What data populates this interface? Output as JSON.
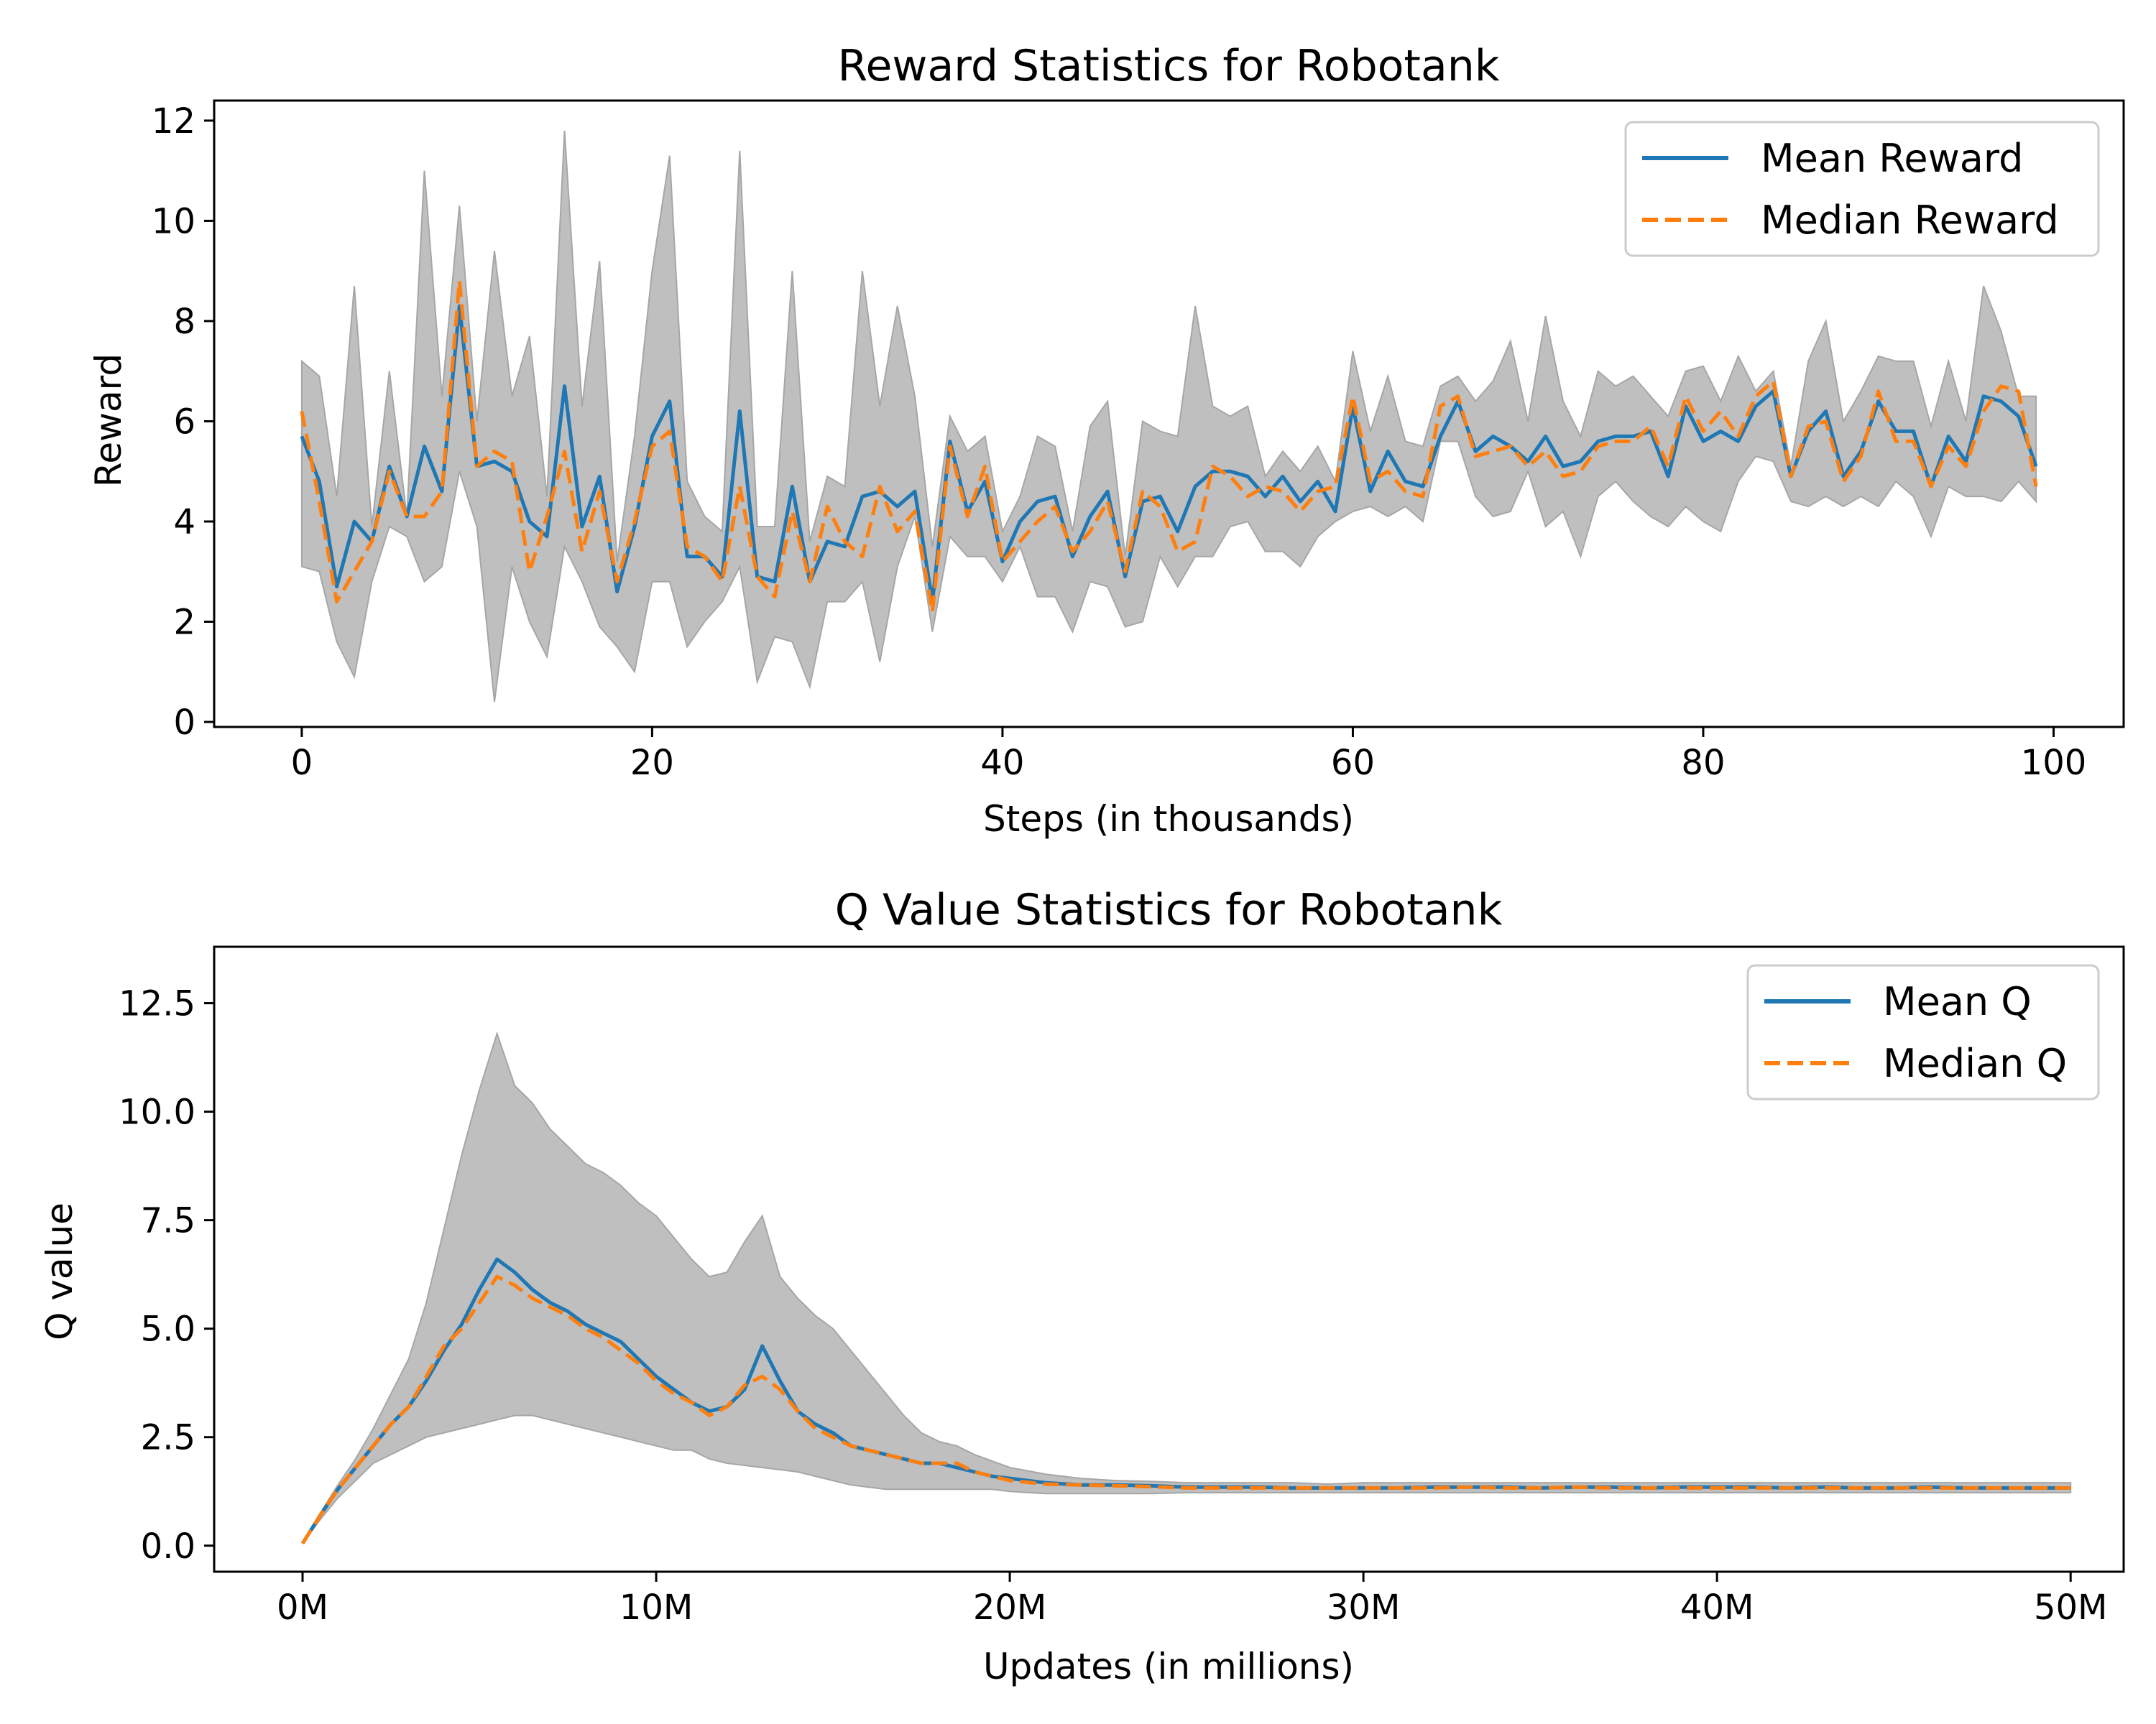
{
  "chart_data": [
    {
      "type": "line",
      "title": "Reward Statistics for Robotank",
      "xlabel": "Steps (in thousands)",
      "ylabel": "Reward",
      "xlim": [
        -5,
        104
      ],
      "ylim": [
        -0.1,
        12.4
      ],
      "xticks": [
        0,
        20,
        40,
        60,
        80,
        100
      ],
      "xtick_labels": [
        "0",
        "20",
        "40",
        "60",
        "80",
        "100"
      ],
      "yticks": [
        0,
        2,
        4,
        6,
        8,
        10,
        12
      ],
      "ytick_labels": [
        "0",
        "2",
        "4",
        "6",
        "8",
        "10",
        "12"
      ],
      "grid": false,
      "legend_position": "top-right",
      "x": [
        0,
        1,
        2,
        3,
        4,
        5,
        6,
        7,
        8,
        9,
        10,
        11,
        12,
        13,
        14,
        15,
        16,
        17,
        18,
        19,
        20,
        21,
        22,
        23,
        24,
        25,
        26,
        27,
        28,
        29,
        30,
        31,
        32,
        33,
        34,
        35,
        36,
        37,
        38,
        39,
        40,
        41,
        42,
        43,
        44,
        45,
        46,
        47,
        48,
        49,
        50,
        51,
        52,
        53,
        54,
        55,
        56,
        57,
        58,
        59,
        60,
        61,
        62,
        63,
        64,
        65,
        66,
        67,
        68,
        69,
        70,
        71,
        72,
        73,
        74,
        75,
        76,
        77,
        78,
        79,
        80,
        81,
        82,
        83,
        84,
        85,
        86,
        87,
        88,
        89,
        90,
        91,
        92,
        93,
        94,
        95,
        96,
        97,
        98,
        99
      ],
      "series": [
        {
          "name": "Mean Reward",
          "color": "#1f77b4",
          "style": "solid",
          "values": [
            5.7,
            4.8,
            2.7,
            4.0,
            3.6,
            5.1,
            4.1,
            5.5,
            4.6,
            8.3,
            5.1,
            5.2,
            5.0,
            4.0,
            3.7,
            6.7,
            3.9,
            4.9,
            2.6,
            3.9,
            5.7,
            6.4,
            3.3,
            3.3,
            2.9,
            6.2,
            2.9,
            2.8,
            4.7,
            2.8,
            3.6,
            3.5,
            4.5,
            4.6,
            4.3,
            4.6,
            2.4,
            5.6,
            4.2,
            4.8,
            3.2,
            4.0,
            4.4,
            4.5,
            3.3,
            4.1,
            4.6,
            2.9,
            4.4,
            4.5,
            3.8,
            4.7,
            5.0,
            5.0,
            4.9,
            4.5,
            4.9,
            4.4,
            4.8,
            4.2,
            6.3,
            4.6,
            5.4,
            4.8,
            4.7,
            5.7,
            6.4,
            5.4,
            5.7,
            5.5,
            5.2,
            5.7,
            5.1,
            5.2,
            5.6,
            5.7,
            5.7,
            5.8,
            4.9,
            6.3,
            5.6,
            5.8,
            5.6,
            6.3,
            6.6,
            4.9,
            5.8,
            6.2,
            4.9,
            5.4,
            6.4,
            5.8,
            5.8,
            4.7,
            5.7,
            5.2,
            6.5,
            6.4,
            6.1,
            5.1
          ]
        },
        {
          "name": "Median Reward",
          "color": "#ff7f0e",
          "style": "dashed",
          "values": [
            6.2,
            4.4,
            2.4,
            3.0,
            3.6,
            5.0,
            4.1,
            4.1,
            4.6,
            8.8,
            5.1,
            5.4,
            5.2,
            3.0,
            4.1,
            5.4,
            3.4,
            4.6,
            2.8,
            4.0,
            5.5,
            5.8,
            3.5,
            3.3,
            2.8,
            4.7,
            2.9,
            2.5,
            4.2,
            2.8,
            4.3,
            3.6,
            3.3,
            4.7,
            3.8,
            4.2,
            2.2,
            5.5,
            4.1,
            5.1,
            3.2,
            3.6,
            4.0,
            4.3,
            3.4,
            3.8,
            4.4,
            3.0,
            4.6,
            4.3,
            3.4,
            3.6,
            5.1,
            4.9,
            4.5,
            4.7,
            4.6,
            4.2,
            4.6,
            4.7,
            6.5,
            4.8,
            5.0,
            4.6,
            4.5,
            6.3,
            6.5,
            5.3,
            5.4,
            5.5,
            5.1,
            5.4,
            4.9,
            5.0,
            5.5,
            5.6,
            5.6,
            5.9,
            5.1,
            6.5,
            5.8,
            6.2,
            5.7,
            6.5,
            6.8,
            4.9,
            5.9,
            6.0,
            4.8,
            5.3,
            6.6,
            5.6,
            5.6,
            4.7,
            5.5,
            5.1,
            6.2,
            6.7,
            6.6,
            4.7
          ]
        },
        {
          "name": "",
          "type": "band",
          "color": "#bfbfbf",
          "upper": [
            7.2,
            6.9,
            4.5,
            8.7,
            3.9,
            7.0,
            4.1,
            11.0,
            6.5,
            10.3,
            6.0,
            9.4,
            6.5,
            7.7,
            4.5,
            11.8,
            6.3,
            9.2,
            3.2,
            5.7,
            9.0,
            11.3,
            4.8,
            4.1,
            3.8,
            11.4,
            3.9,
            3.9,
            9.0,
            3.6,
            4.9,
            4.7,
            9.0,
            6.3,
            8.3,
            6.5,
            3.5,
            6.1,
            5.4,
            5.7,
            3.8,
            4.5,
            5.7,
            5.5,
            3.8,
            5.9,
            6.4,
            3.3,
            6.0,
            5.8,
            5.7,
            8.3,
            6.3,
            6.1,
            6.3,
            4.9,
            5.4,
            5.0,
            5.5,
            4.8,
            7.4,
            5.8,
            6.9,
            5.6,
            5.5,
            6.7,
            6.9,
            6.4,
            6.8,
            7.6,
            6.0,
            8.1,
            6.4,
            5.7,
            7.0,
            6.7,
            6.9,
            6.5,
            6.1,
            7.0,
            7.1,
            6.4,
            7.3,
            6.6,
            7.0,
            5.1,
            7.2,
            8.0,
            6.0,
            6.6,
            7.3,
            7.2,
            7.2,
            5.9,
            7.2,
            6.0,
            8.7,
            7.8,
            6.5,
            6.5
          ],
          "lower": [
            3.1,
            3.0,
            1.6,
            0.9,
            2.8,
            3.9,
            3.7,
            2.8,
            3.1,
            5.0,
            3.9,
            0.4,
            3.1,
            2.0,
            1.3,
            3.5,
            2.8,
            1.9,
            1.5,
            1.0,
            2.8,
            2.8,
            1.5,
            2.0,
            2.4,
            3.1,
            0.8,
            1.7,
            1.6,
            0.7,
            2.4,
            2.4,
            2.8,
            1.2,
            3.1,
            4.1,
            1.8,
            3.7,
            3.3,
            3.3,
            2.8,
            3.5,
            2.5,
            2.5,
            1.8,
            2.8,
            2.7,
            1.9,
            2.0,
            3.3,
            2.7,
            3.3,
            3.3,
            3.9,
            4.0,
            3.4,
            3.4,
            3.1,
            3.7,
            4.0,
            4.2,
            4.3,
            4.1,
            4.3,
            4.0,
            5.6,
            5.6,
            4.5,
            4.1,
            4.2,
            5.0,
            3.9,
            4.2,
            3.3,
            4.5,
            4.8,
            4.4,
            4.1,
            3.9,
            4.3,
            4.0,
            3.8,
            4.8,
            5.3,
            5.2,
            4.4,
            4.3,
            4.5,
            4.3,
            4.5,
            4.3,
            4.8,
            4.5,
            3.7,
            4.7,
            4.5,
            4.5,
            4.4,
            4.8,
            4.4
          ]
        }
      ]
    },
    {
      "type": "line",
      "title": "Q Value Statistics for Robotank",
      "xlabel": "Updates (in millions)",
      "ylabel": "Q value",
      "xlim": [
        -2.5,
        51.5
      ],
      "ylim": [
        -0.6,
        13.8
      ],
      "xticks": [
        0,
        10,
        20,
        30,
        40,
        50
      ],
      "xtick_labels": [
        "0M",
        "10M",
        "20M",
        "30M",
        "40M",
        "50M"
      ],
      "yticks": [
        0.0,
        2.5,
        5.0,
        7.5,
        10.0,
        12.5
      ],
      "ytick_labels": [
        "0.0",
        "2.5",
        "5.0",
        "7.5",
        "10.0",
        "12.5"
      ],
      "grid": false,
      "legend_position": "top-right",
      "x": [
        0,
        0.5,
        1,
        1.5,
        2,
        2.5,
        3,
        3.5,
        4,
        4.5,
        5,
        5.5,
        6,
        6.5,
        7,
        7.5,
        8,
        8.5,
        9,
        9.5,
        10,
        10.5,
        11,
        11.5,
        12,
        12.5,
        13,
        13.5,
        14,
        14.5,
        15,
        15.5,
        16,
        16.5,
        17,
        17.5,
        18,
        18.5,
        19,
        19.5,
        20,
        21,
        22,
        23,
        24,
        25,
        26,
        27,
        28,
        29,
        30,
        31,
        32,
        33,
        34,
        35,
        36,
        37,
        38,
        39,
        40,
        41,
        42,
        43,
        44,
        45,
        46,
        47,
        48,
        49,
        50
      ],
      "series": [
        {
          "name": "Mean Q",
          "color": "#1f77b4",
          "style": "solid",
          "values": [
            0.05,
            0.7,
            1.3,
            1.8,
            2.3,
            2.8,
            3.2,
            3.8,
            4.5,
            5.1,
            5.9,
            6.6,
            6.3,
            5.9,
            5.6,
            5.4,
            5.1,
            4.9,
            4.7,
            4.3,
            3.9,
            3.6,
            3.3,
            3.1,
            3.2,
            3.6,
            4.6,
            3.8,
            3.1,
            2.8,
            2.6,
            2.3,
            2.2,
            2.1,
            2.0,
            1.9,
            1.9,
            1.8,
            1.7,
            1.6,
            1.55,
            1.45,
            1.4,
            1.4,
            1.38,
            1.35,
            1.35,
            1.35,
            1.33,
            1.33,
            1.33,
            1.33,
            1.35,
            1.35,
            1.35,
            1.33,
            1.35,
            1.35,
            1.33,
            1.35,
            1.35,
            1.35,
            1.33,
            1.35,
            1.33,
            1.33,
            1.35,
            1.33,
            1.33,
            1.33,
            1.33
          ]
        },
        {
          "name": "Median Q",
          "color": "#ff7f0e",
          "style": "dashed",
          "values": [
            0.05,
            0.7,
            1.3,
            1.8,
            2.3,
            2.8,
            3.2,
            3.9,
            4.6,
            5.0,
            5.6,
            6.2,
            6.0,
            5.7,
            5.5,
            5.3,
            5.0,
            4.8,
            4.5,
            4.2,
            3.8,
            3.5,
            3.3,
            3.0,
            3.2,
            3.7,
            3.9,
            3.6,
            3.1,
            2.7,
            2.5,
            2.3,
            2.2,
            2.1,
            2.0,
            1.9,
            1.9,
            1.9,
            1.7,
            1.6,
            1.5,
            1.42,
            1.4,
            1.38,
            1.36,
            1.33,
            1.33,
            1.33,
            1.33,
            1.33,
            1.33,
            1.33,
            1.33,
            1.35,
            1.33,
            1.33,
            1.35,
            1.33,
            1.33,
            1.33,
            1.33,
            1.33,
            1.33,
            1.33,
            1.33,
            1.33,
            1.33,
            1.33,
            1.33,
            1.33,
            1.33
          ]
        },
        {
          "name": "",
          "type": "band",
          "color": "#bfbfbf",
          "upper": [
            0.05,
            0.75,
            1.4,
            2.0,
            2.7,
            3.5,
            4.3,
            5.6,
            7.3,
            9.0,
            10.5,
            11.8,
            10.6,
            10.2,
            9.6,
            9.2,
            8.8,
            8.6,
            8.3,
            7.9,
            7.6,
            7.1,
            6.6,
            6.2,
            6.3,
            7.0,
            7.6,
            6.2,
            5.7,
            5.3,
            5.0,
            4.5,
            4.0,
            3.5,
            3.0,
            2.6,
            2.4,
            2.3,
            2.1,
            1.95,
            1.8,
            1.65,
            1.55,
            1.5,
            1.48,
            1.45,
            1.45,
            1.45,
            1.45,
            1.42,
            1.45,
            1.45,
            1.45,
            1.45,
            1.45,
            1.45,
            1.45,
            1.45,
            1.45,
            1.45,
            1.45,
            1.45,
            1.45,
            1.45,
            1.45,
            1.45,
            1.45,
            1.45,
            1.45,
            1.45,
            1.45
          ],
          "lower": [
            0.05,
            0.6,
            1.1,
            1.5,
            1.9,
            2.1,
            2.3,
            2.5,
            2.6,
            2.7,
            2.8,
            2.9,
            3.0,
            3.0,
            2.9,
            2.8,
            2.7,
            2.6,
            2.5,
            2.4,
            2.3,
            2.2,
            2.2,
            2.0,
            1.9,
            1.85,
            1.8,
            1.75,
            1.7,
            1.6,
            1.5,
            1.4,
            1.35,
            1.3,
            1.3,
            1.3,
            1.3,
            1.3,
            1.3,
            1.3,
            1.25,
            1.2,
            1.2,
            1.2,
            1.2,
            1.22,
            1.22,
            1.22,
            1.22,
            1.22,
            1.22,
            1.22,
            1.22,
            1.22,
            1.22,
            1.22,
            1.22,
            1.22,
            1.22,
            1.22,
            1.22,
            1.22,
            1.22,
            1.22,
            1.22,
            1.22,
            1.22,
            1.22,
            1.22,
            1.22,
            1.22
          ]
        }
      ]
    }
  ]
}
